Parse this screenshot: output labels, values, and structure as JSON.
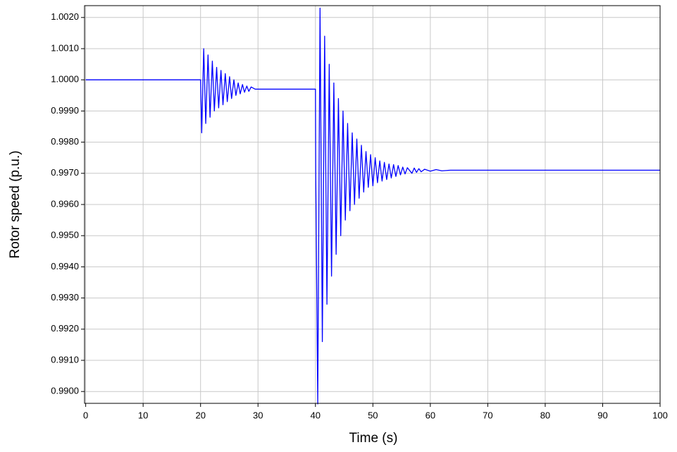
{
  "chart_data": {
    "type": "line",
    "xlabel": "Time (s)",
    "ylabel": "Rotor speed (p.u.)",
    "xlim": [
      -0.2,
      100
    ],
    "ylim": [
      0.98962,
      1.00238
    ],
    "xticks": [
      0,
      10,
      20,
      30,
      40,
      50,
      60,
      70,
      80,
      90,
      100
    ],
    "yticks": [
      {
        "value": 0.99,
        "label": "0.9900"
      },
      {
        "value": 0.991,
        "label": "0.9910"
      },
      {
        "value": 0.992,
        "label": "0.9920"
      },
      {
        "value": 0.993,
        "label": "0.9930"
      },
      {
        "value": 0.994,
        "label": "0.9940"
      },
      {
        "value": 0.995,
        "label": "0.9950"
      },
      {
        "value": 0.996,
        "label": "0.9960"
      },
      {
        "value": 0.997,
        "label": "0.9970"
      },
      {
        "value": 0.998,
        "label": "0.9980"
      },
      {
        "value": 0.999,
        "label": "0.9990"
      },
      {
        "value": 1.0,
        "label": "1.0000"
      },
      {
        "value": 1.001,
        "label": "1.0010"
      },
      {
        "value": 1.002,
        "label": "1.0020"
      }
    ],
    "grid": true,
    "series": [
      {
        "color": "#0000ff",
        "x": [
          0,
          20,
          20.2,
          20.55,
          20.9,
          21.3,
          21.65,
          22.05,
          22.4,
          22.8,
          23.15,
          23.55,
          23.9,
          24.3,
          24.65,
          25.05,
          25.4,
          25.8,
          26.15,
          26.55,
          26.9,
          27.3,
          27.65,
          28.05,
          28.4,
          28.8,
          29.5,
          39.8,
          40.0,
          40.05,
          40.4,
          40.8,
          41.2,
          41.6,
          42.0,
          42.4,
          42.8,
          43.2,
          43.6,
          44.0,
          44.4,
          44.8,
          45.2,
          45.6,
          46.0,
          46.4,
          46.8,
          47.2,
          47.6,
          48.0,
          48.4,
          48.8,
          49.2,
          49.6,
          50.0,
          50.4,
          50.8,
          51.2,
          51.6,
          52.0,
          52.4,
          52.8,
          53.2,
          53.6,
          54.0,
          54.4,
          54.8,
          55.2,
          55.6,
          56.0,
          56.8,
          57.2,
          57.6,
          58.0,
          58.4,
          59.0,
          60.0,
          61.0,
          62.0,
          63.5,
          100
        ],
        "values": [
          1.0,
          1.0,
          0.9983,
          1.001,
          0.9986,
          1.0008,
          0.9988,
          1.0006,
          0.999,
          1.0004,
          0.9991,
          1.0003,
          0.9992,
          1.0002,
          0.9993,
          1.0001,
          0.9994,
          1.0,
          0.9995,
          0.9999,
          0.99955,
          0.99985,
          0.9996,
          0.9998,
          0.99963,
          0.99977,
          0.9997,
          0.9997,
          0.9997,
          0.997,
          0.9896,
          1.0023,
          0.9916,
          1.0014,
          0.9928,
          1.0005,
          0.9937,
          0.9999,
          0.9944,
          0.9994,
          0.995,
          0.999,
          0.9955,
          0.9986,
          0.9958,
          0.9983,
          0.996,
          0.9981,
          0.9962,
          0.9979,
          0.9964,
          0.9977,
          0.99655,
          0.9976,
          0.9966,
          0.9975,
          0.9967,
          0.9974,
          0.99675,
          0.99735,
          0.9968,
          0.9973,
          0.99685,
          0.99728,
          0.9969,
          0.99725,
          0.99695,
          0.9972,
          0.99698,
          0.99718,
          0.997,
          0.99717,
          0.99703,
          0.99715,
          0.99705,
          0.99713,
          0.99707,
          0.99712,
          0.99708,
          0.9971,
          0.9971
        ]
      }
    ]
  }
}
